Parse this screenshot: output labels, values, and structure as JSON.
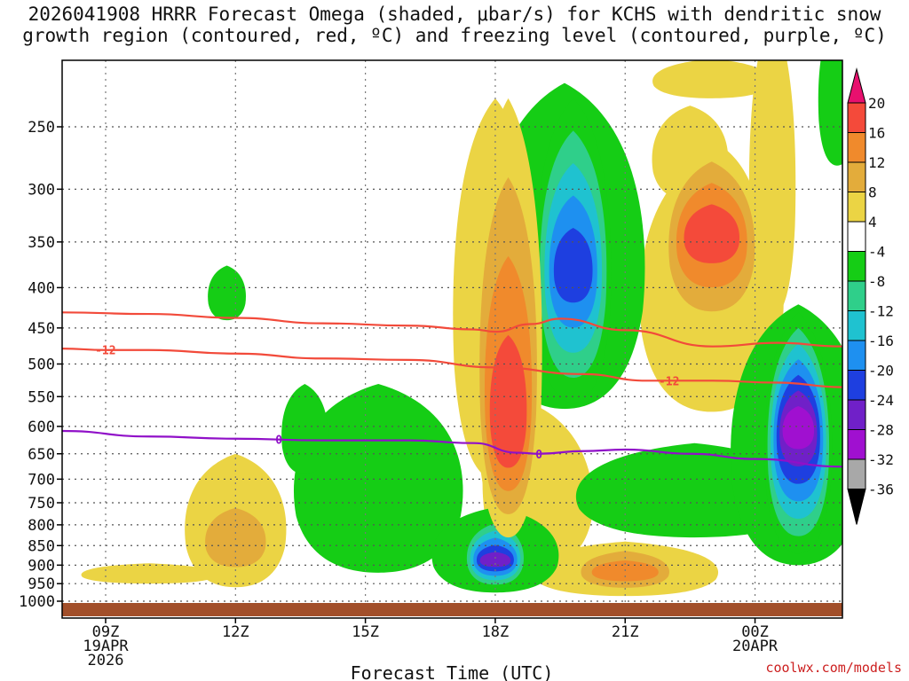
{
  "title": {
    "line1": "2026041908 HRRR Forecast Omega (shaded, μbar/s) for KCHS with dendritic snow",
    "line2": "growth region (contoured, red, ºC) and freezing level (contoured, purple, ºC)"
  },
  "credit": "coolwx.com/models",
  "chart_data": {
    "type": "heatmap",
    "title": "2026041908 HRRR Forecast Omega (shaded, μbar/s) for KCHS with dendritic snow growth region (contoured, red, ºC) and freezing level (contoured, purple, ºC)",
    "xlabel": "Forecast Time (UTC)",
    "ylabel": "",
    "x_unit": "hours since 2026-04-19 08Z",
    "xlim": [
      0,
      18
    ],
    "ylim": [
      1030,
      200
    ],
    "y_scale": "log-pressure",
    "x_ticks": [
      {
        "hour": 1,
        "label": "09Z",
        "sub": [
          "19APR",
          "2026"
        ]
      },
      {
        "hour": 4,
        "label": "12Z",
        "sub": []
      },
      {
        "hour": 7,
        "label": "15Z",
        "sub": []
      },
      {
        "hour": 10,
        "label": "18Z",
        "sub": []
      },
      {
        "hour": 13,
        "label": "21Z",
        "sub": []
      },
      {
        "hour": 16,
        "label": "00Z",
        "sub": [
          "20APR"
        ]
      }
    ],
    "y_ticks": [
      250,
      300,
      350,
      400,
      450,
      500,
      550,
      600,
      650,
      700,
      750,
      800,
      850,
      900,
      950,
      1000
    ],
    "colorbar": {
      "labels": [
        "20",
        "16",
        "12",
        "8",
        "4",
        "-4",
        "-8",
        "-12",
        "-16",
        "-20",
        "-24",
        "-28",
        "-32",
        "-36"
      ],
      "bins": [
        {
          "lo": 20,
          "hi": 24,
          "color": "#e8106e"
        },
        {
          "lo": 16,
          "hi": 20,
          "color": "#f44a3a"
        },
        {
          "lo": 12,
          "hi": 16,
          "color": "#f08a2c"
        },
        {
          "lo": 8,
          "hi": 12,
          "color": "#e3ac3b"
        },
        {
          "lo": 4,
          "hi": 8,
          "color": "#ebd444"
        },
        {
          "lo": -4,
          "hi": 4,
          "color": "#ffffff"
        },
        {
          "lo": -8,
          "hi": -4,
          "color": "#15cd15"
        },
        {
          "lo": -12,
          "hi": -8,
          "color": "#2fcf8a"
        },
        {
          "lo": -16,
          "hi": -12,
          "color": "#1fc2d0"
        },
        {
          "lo": -20,
          "hi": -16,
          "color": "#1e90f0"
        },
        {
          "lo": -24,
          "hi": -20,
          "color": "#1e3fe0"
        },
        {
          "lo": -28,
          "hi": -24,
          "color": "#7020c8"
        },
        {
          "lo": -32,
          "hi": -28,
          "color": "#a010d0"
        },
        {
          "lo": -36,
          "hi": -32,
          "color": "#a8a8a8"
        },
        {
          "lo": -40,
          "hi": -36,
          "color": "#000000"
        }
      ]
    },
    "omega_features": [
      {
        "name": "upward core near 18Z low levels",
        "hour": 10.0,
        "p_center": 890,
        "p_top": 780,
        "p_bottom": 965,
        "half_width_hours": 0.75,
        "min_value": -28
      },
      {
        "name": "upward core 19-20Z mid levels",
        "hour": 11.8,
        "p_center": 380,
        "p_top": 230,
        "p_bottom": 560,
        "half_width_hours": 0.9,
        "min_value": -24
      },
      {
        "name": "upward core near 01Z",
        "hour": 17.0,
        "p_center": 600,
        "p_top": 430,
        "p_bottom": 870,
        "half_width_hours": 0.8,
        "min_value": -32
      },
      {
        "name": "sinking max 18-19Z",
        "hour": 10.3,
        "p_center": 620,
        "p_top": 230,
        "p_bottom": 830,
        "half_width_hours": 0.8,
        "max_value": 20
      },
      {
        "name": "sinking max 23Z aloft",
        "hour": 15.0,
        "p_center": 340,
        "p_top": 260,
        "p_bottom": 460,
        "half_width_hours": 1.2,
        "max_value": 20
      },
      {
        "name": "sinking region 12Z low levels",
        "hour": 4.0,
        "p_center": 850,
        "p_top": 700,
        "p_bottom": 950,
        "half_width_hours": 1.0,
        "max_value": 12
      },
      {
        "name": "sinking spot 21Z near surface",
        "hour": 13.0,
        "p_center": 920,
        "p_top": 840,
        "p_bottom": 980,
        "half_width_hours": 1.3,
        "max_value": 16
      }
    ],
    "contours": [
      {
        "name": "-12 degC isotherm (upper)",
        "label": "",
        "color": "#f24a3a",
        "label_hour": null,
        "hours": [
          0,
          2,
          4,
          6,
          8,
          9.5,
          10.0,
          10.8,
          11.5,
          13,
          15,
          16.5,
          18
        ],
        "pressure": [
          430,
          432,
          437,
          444,
          447,
          452,
          455,
          445,
          438,
          453,
          475,
          470,
          475
        ]
      },
      {
        "name": "-12 degC isotherm (lower)",
        "label": "-12",
        "color": "#f24a3a",
        "label_hour": 1.0,
        "hours": [
          0,
          1,
          2,
          4,
          6,
          8,
          10,
          12,
          13.5,
          15,
          16.5,
          18
        ],
        "pressure": [
          478,
          480,
          480,
          485,
          492,
          494,
          505,
          515,
          525,
          525,
          528,
          535
        ],
        "label2": "-12",
        "label2_hour": 14.0
      },
      {
        "name": "0 degC freezing level",
        "label": "0",
        "color": "#9010c8",
        "label_hour": 5.0,
        "hours": [
          0,
          2,
          4,
          6,
          8,
          9.5,
          10.5,
          11.0,
          12,
          13,
          14.5,
          16,
          18
        ],
        "pressure": [
          608,
          618,
          622,
          625,
          625,
          630,
          648,
          650,
          645,
          642,
          650,
          660,
          675
        ],
        "label2": "0",
        "label2_hour": 11.0
      }
    ]
  }
}
